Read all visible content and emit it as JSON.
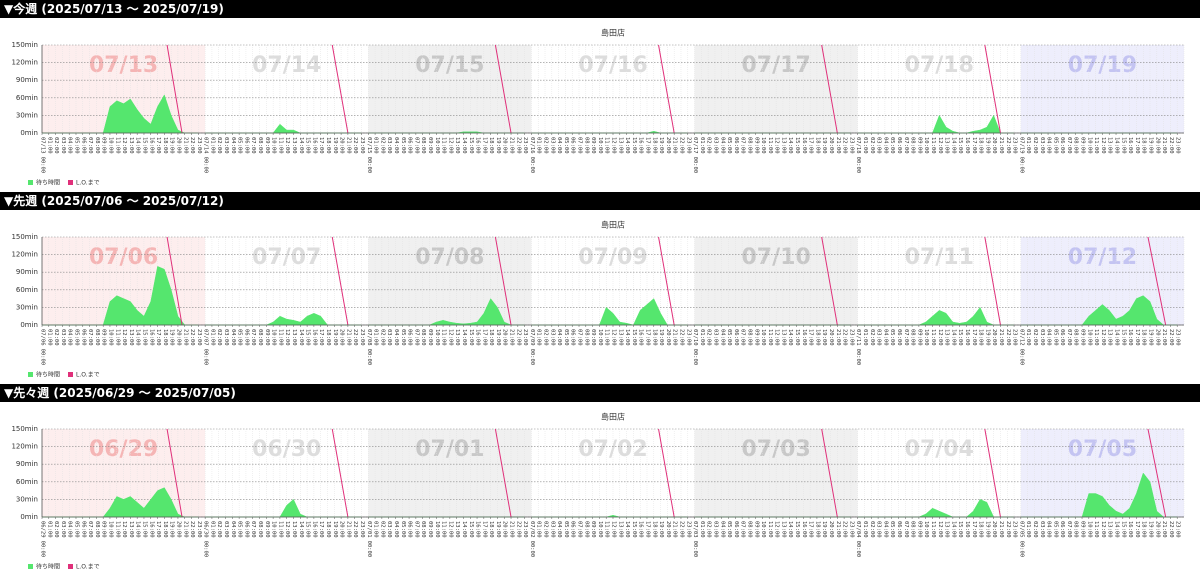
{
  "chart_data": [
    {
      "type": "area",
      "heading": "▼今週 (2025/07/13 〜 2025/07/19)",
      "title": "島田店",
      "ylim": [
        0,
        150
      ],
      "yticks": [
        {
          "value": 0,
          "label": "0min"
        },
        {
          "value": 30,
          "label": "30min"
        },
        {
          "value": 60,
          "label": "60min"
        },
        {
          "value": 90,
          "label": "90min"
        },
        {
          "value": 120,
          "label": "120min"
        },
        {
          "value": 150,
          "label": "150min"
        }
      ],
      "grid": true,
      "hours": [
        "00:00",
        "01:00",
        "02:00",
        "03:00",
        "04:00",
        "05:00",
        "06:00",
        "07:00",
        "08:00",
        "09:00",
        "10:00",
        "11:00",
        "12:00",
        "13:00",
        "14:00",
        "15:00",
        "16:00",
        "17:00",
        "18:00",
        "19:00",
        "20:00",
        "21:00",
        "22:00",
        "23:00"
      ],
      "band_colors": [
        "#fdeeee",
        "#ffffff",
        "#f0f0f0",
        "#ffffff",
        "#f0f0f0",
        "#ffffff",
        "#eeeefc"
      ],
      "date_colors": [
        "#f5b5b5",
        "#dddddd",
        "#c8c8c8",
        "#dddddd",
        "#c8c8c8",
        "#dddddd",
        "#c4c4f2"
      ],
      "legend": [
        {
          "name": "待ち時間",
          "color": "#55e66e"
        },
        {
          "name": "L.O.まで",
          "color": "#e0307a"
        }
      ],
      "days": [
        {
          "date": "07/13",
          "wait": [
            0,
            0,
            0,
            0,
            0,
            0,
            0,
            0,
            0,
            0,
            45,
            55,
            50,
            58,
            40,
            25,
            15,
            45,
            65,
            30,
            5,
            0,
            0,
            0
          ],
          "lo_x": [
            18.4,
            20.6
          ],
          "lo_values": [
            150,
            0
          ]
        },
        {
          "date": "07/14",
          "wait": [
            0,
            0,
            0,
            0,
            0,
            0,
            0,
            0,
            0,
            0,
            0,
            15,
            5,
            5,
            0,
            0,
            0,
            0,
            0,
            0,
            0,
            0,
            0,
            0
          ],
          "lo_x": [
            18.7,
            21
          ],
          "lo_values": [
            150,
            0
          ]
        },
        {
          "date": "07/15",
          "wait": [
            0,
            0,
            0,
            0,
            0,
            0,
            0,
            0,
            0,
            0,
            0,
            0,
            0,
            0,
            2,
            2,
            2,
            0,
            0,
            0,
            0,
            0,
            0,
            0
          ],
          "lo_x": [
            18.7,
            21
          ],
          "lo_values": [
            150,
            0
          ]
        },
        {
          "date": "07/16",
          "wait": [
            0,
            0,
            0,
            0,
            0,
            0,
            0,
            0,
            0,
            0,
            0,
            0,
            0,
            0,
            0,
            0,
            0,
            0,
            3,
            0,
            0,
            0,
            0,
            0
          ],
          "lo_x": [
            18.7,
            21
          ],
          "lo_values": [
            150,
            0
          ]
        },
        {
          "date": "07/17",
          "wait": [
            0,
            0,
            0,
            0,
            0,
            0,
            0,
            0,
            0,
            0,
            0,
            0,
            0,
            0,
            0,
            0,
            0,
            0,
            0,
            0,
            0,
            0,
            0,
            0
          ],
          "lo_x": [
            18.7,
            21
          ],
          "lo_values": [
            150,
            0
          ]
        },
        {
          "date": "07/18",
          "wait": [
            0,
            0,
            0,
            0,
            0,
            0,
            0,
            0,
            0,
            0,
            0,
            0,
            30,
            10,
            3,
            0,
            0,
            3,
            5,
            10,
            30,
            0,
            0,
            0
          ],
          "lo_x": [
            18.7,
            21
          ],
          "lo_values": [
            150,
            0
          ]
        },
        {
          "date": "07/19",
          "wait": [
            0,
            0,
            0,
            0,
            0,
            0,
            0,
            0,
            0,
            0,
            0,
            0,
            0,
            0,
            0,
            0,
            0,
            0,
            0,
            0,
            0,
            0,
            0,
            0
          ]
        }
      ]
    },
    {
      "type": "area",
      "heading": "▼先週 (2025/07/06 〜 2025/07/12)",
      "title": "島田店",
      "ylim": [
        0,
        150
      ],
      "yticks": [
        {
          "value": 0,
          "label": "0min"
        },
        {
          "value": 30,
          "label": "30min"
        },
        {
          "value": 60,
          "label": "60min"
        },
        {
          "value": 90,
          "label": "90min"
        },
        {
          "value": 120,
          "label": "120min"
        },
        {
          "value": 150,
          "label": "150min"
        }
      ],
      "grid": true,
      "hours": [
        "00:00",
        "01:00",
        "02:00",
        "03:00",
        "04:00",
        "05:00",
        "06:00",
        "07:00",
        "08:00",
        "09:00",
        "10:00",
        "11:00",
        "12:00",
        "13:00",
        "14:00",
        "15:00",
        "16:00",
        "17:00",
        "18:00",
        "19:00",
        "20:00",
        "21:00",
        "22:00",
        "23:00"
      ],
      "band_colors": [
        "#fdeeee",
        "#ffffff",
        "#f0f0f0",
        "#ffffff",
        "#f0f0f0",
        "#ffffff",
        "#eeeefc"
      ],
      "date_colors": [
        "#f5b5b5",
        "#dddddd",
        "#c8c8c8",
        "#dddddd",
        "#c8c8c8",
        "#dddddd",
        "#c4c4f2"
      ],
      "legend": [
        {
          "name": "待ち時間",
          "color": "#55e66e"
        },
        {
          "name": "L.O.まで",
          "color": "#e0307a"
        }
      ],
      "days": [
        {
          "date": "07/06",
          "wait": [
            0,
            0,
            0,
            0,
            0,
            0,
            0,
            0,
            0,
            0,
            40,
            50,
            45,
            40,
            25,
            15,
            40,
            100,
            95,
            60,
            15,
            0,
            0,
            0
          ],
          "lo_x": [
            18.4,
            20.6
          ],
          "lo_values": [
            150,
            0
          ]
        },
        {
          "date": "07/07",
          "wait": [
            0,
            0,
            0,
            0,
            0,
            0,
            0,
            0,
            0,
            0,
            5,
            15,
            10,
            8,
            5,
            15,
            20,
            15,
            0,
            0,
            0,
            0,
            0,
            0
          ],
          "lo_x": [
            18.7,
            21
          ],
          "lo_values": [
            150,
            0
          ]
        },
        {
          "date": "07/08",
          "wait": [
            0,
            0,
            0,
            0,
            0,
            0,
            0,
            0,
            0,
            0,
            5,
            8,
            5,
            3,
            2,
            3,
            5,
            20,
            45,
            30,
            5,
            0,
            0,
            0
          ],
          "lo_x": [
            18.7,
            21
          ],
          "lo_values": [
            150,
            0
          ]
        },
        {
          "date": "07/09",
          "wait": [
            0,
            0,
            0,
            0,
            0,
            0,
            0,
            0,
            0,
            0,
            0,
            30,
            20,
            5,
            3,
            0,
            25,
            35,
            45,
            20,
            0,
            0,
            0,
            0
          ],
          "lo_x": [
            18.7,
            21
          ],
          "lo_values": [
            150,
            0
          ]
        },
        {
          "date": "07/10",
          "wait": [
            0,
            0,
            0,
            0,
            0,
            0,
            0,
            0,
            0,
            0,
            0,
            0,
            0,
            0,
            0,
            0,
            0,
            0,
            0,
            0,
            0,
            0,
            0,
            0
          ],
          "lo_x": [
            18.7,
            21
          ],
          "lo_values": [
            150,
            0
          ]
        },
        {
          "date": "07/11",
          "wait": [
            0,
            0,
            0,
            0,
            0,
            0,
            0,
            0,
            0,
            0,
            5,
            15,
            25,
            20,
            5,
            3,
            5,
            15,
            30,
            5,
            0,
            0,
            0,
            0
          ],
          "lo_x": [
            18.7,
            21
          ],
          "lo_values": [
            150,
            0
          ]
        },
        {
          "date": "07/12",
          "wait": [
            0,
            0,
            0,
            0,
            0,
            0,
            0,
            0,
            0,
            0,
            15,
            25,
            35,
            25,
            10,
            15,
            25,
            45,
            50,
            40,
            10,
            0,
            0,
            0
          ],
          "lo_x": [
            18.7,
            21.3
          ],
          "lo_values": [
            150,
            0
          ]
        }
      ]
    },
    {
      "type": "area",
      "heading": "▼先々週 (2025/06/29 〜 2025/07/05)",
      "title": "島田店",
      "ylim": [
        0,
        150
      ],
      "yticks": [
        {
          "value": 0,
          "label": "0min"
        },
        {
          "value": 30,
          "label": "30min"
        },
        {
          "value": 60,
          "label": "60min"
        },
        {
          "value": 90,
          "label": "90min"
        },
        {
          "value": 120,
          "label": "120min"
        },
        {
          "value": 150,
          "label": "150min"
        }
      ],
      "grid": true,
      "hours": [
        "00:00",
        "01:00",
        "02:00",
        "03:00",
        "04:00",
        "05:00",
        "06:00",
        "07:00",
        "08:00",
        "09:00",
        "10:00",
        "11:00",
        "12:00",
        "13:00",
        "14:00",
        "15:00",
        "16:00",
        "17:00",
        "18:00",
        "19:00",
        "20:00",
        "21:00",
        "22:00",
        "23:00"
      ],
      "band_colors": [
        "#fdeeee",
        "#ffffff",
        "#f0f0f0",
        "#ffffff",
        "#f0f0f0",
        "#ffffff",
        "#eeeefc"
      ],
      "date_colors": [
        "#f5b5b5",
        "#dddddd",
        "#c8c8c8",
        "#dddddd",
        "#c8c8c8",
        "#dddddd",
        "#c4c4f2"
      ],
      "legend": [
        {
          "name": "待ち時間",
          "color": "#55e66e"
        },
        {
          "name": "L.O.まで",
          "color": "#e0307a"
        }
      ],
      "days": [
        {
          "date": "06/29",
          "wait": [
            0,
            0,
            0,
            0,
            0,
            0,
            0,
            0,
            0,
            0,
            15,
            35,
            30,
            35,
            25,
            15,
            30,
            45,
            50,
            30,
            5,
            0,
            0,
            0
          ],
          "lo_x": [
            18.4,
            20.6
          ],
          "lo_values": [
            150,
            0
          ]
        },
        {
          "date": "06/30",
          "wait": [
            0,
            0,
            0,
            0,
            0,
            0,
            0,
            0,
            0,
            0,
            0,
            0,
            20,
            30,
            5,
            0,
            0,
            0,
            0,
            0,
            0,
            0,
            0,
            0
          ],
          "lo_x": [
            18.7,
            21
          ],
          "lo_values": [
            150,
            0
          ]
        },
        {
          "date": "07/01",
          "wait": [
            0,
            0,
            0,
            0,
            0,
            0,
            0,
            0,
            0,
            0,
            0,
            0,
            0,
            0,
            0,
            0,
            0,
            0,
            0,
            0,
            0,
            0,
            0,
            0
          ],
          "lo_x": [
            18.7,
            21
          ],
          "lo_values": [
            150,
            0
          ]
        },
        {
          "date": "07/02",
          "wait": [
            0,
            0,
            0,
            0,
            0,
            0,
            0,
            0,
            0,
            0,
            0,
            0,
            3,
            0,
            0,
            0,
            0,
            0,
            0,
            0,
            0,
            0,
            0,
            0
          ],
          "lo_x": [
            18.7,
            21
          ],
          "lo_values": [
            150,
            0
          ]
        },
        {
          "date": "07/03",
          "wait": [
            0,
            0,
            0,
            0,
            0,
            0,
            0,
            0,
            0,
            0,
            0,
            0,
            0,
            0,
            0,
            0,
            0,
            0,
            0,
            0,
            0,
            0,
            0,
            0
          ],
          "lo_x": [
            18.7,
            21
          ],
          "lo_values": [
            150,
            0
          ]
        },
        {
          "date": "07/04",
          "wait": [
            0,
            0,
            0,
            0,
            0,
            0,
            0,
            0,
            0,
            0,
            5,
            15,
            10,
            5,
            0,
            0,
            0,
            10,
            30,
            25,
            0,
            0,
            0,
            0
          ],
          "lo_x": [
            18.7,
            21
          ],
          "lo_values": [
            150,
            0
          ]
        },
        {
          "date": "07/05",
          "wait": [
            0,
            0,
            0,
            0,
            0,
            0,
            0,
            0,
            0,
            0,
            40,
            40,
            35,
            20,
            10,
            5,
            15,
            40,
            75,
            60,
            10,
            0,
            0,
            0
          ],
          "lo_x": [
            18.7,
            21.3
          ],
          "lo_values": [
            150,
            0
          ]
        }
      ]
    }
  ]
}
